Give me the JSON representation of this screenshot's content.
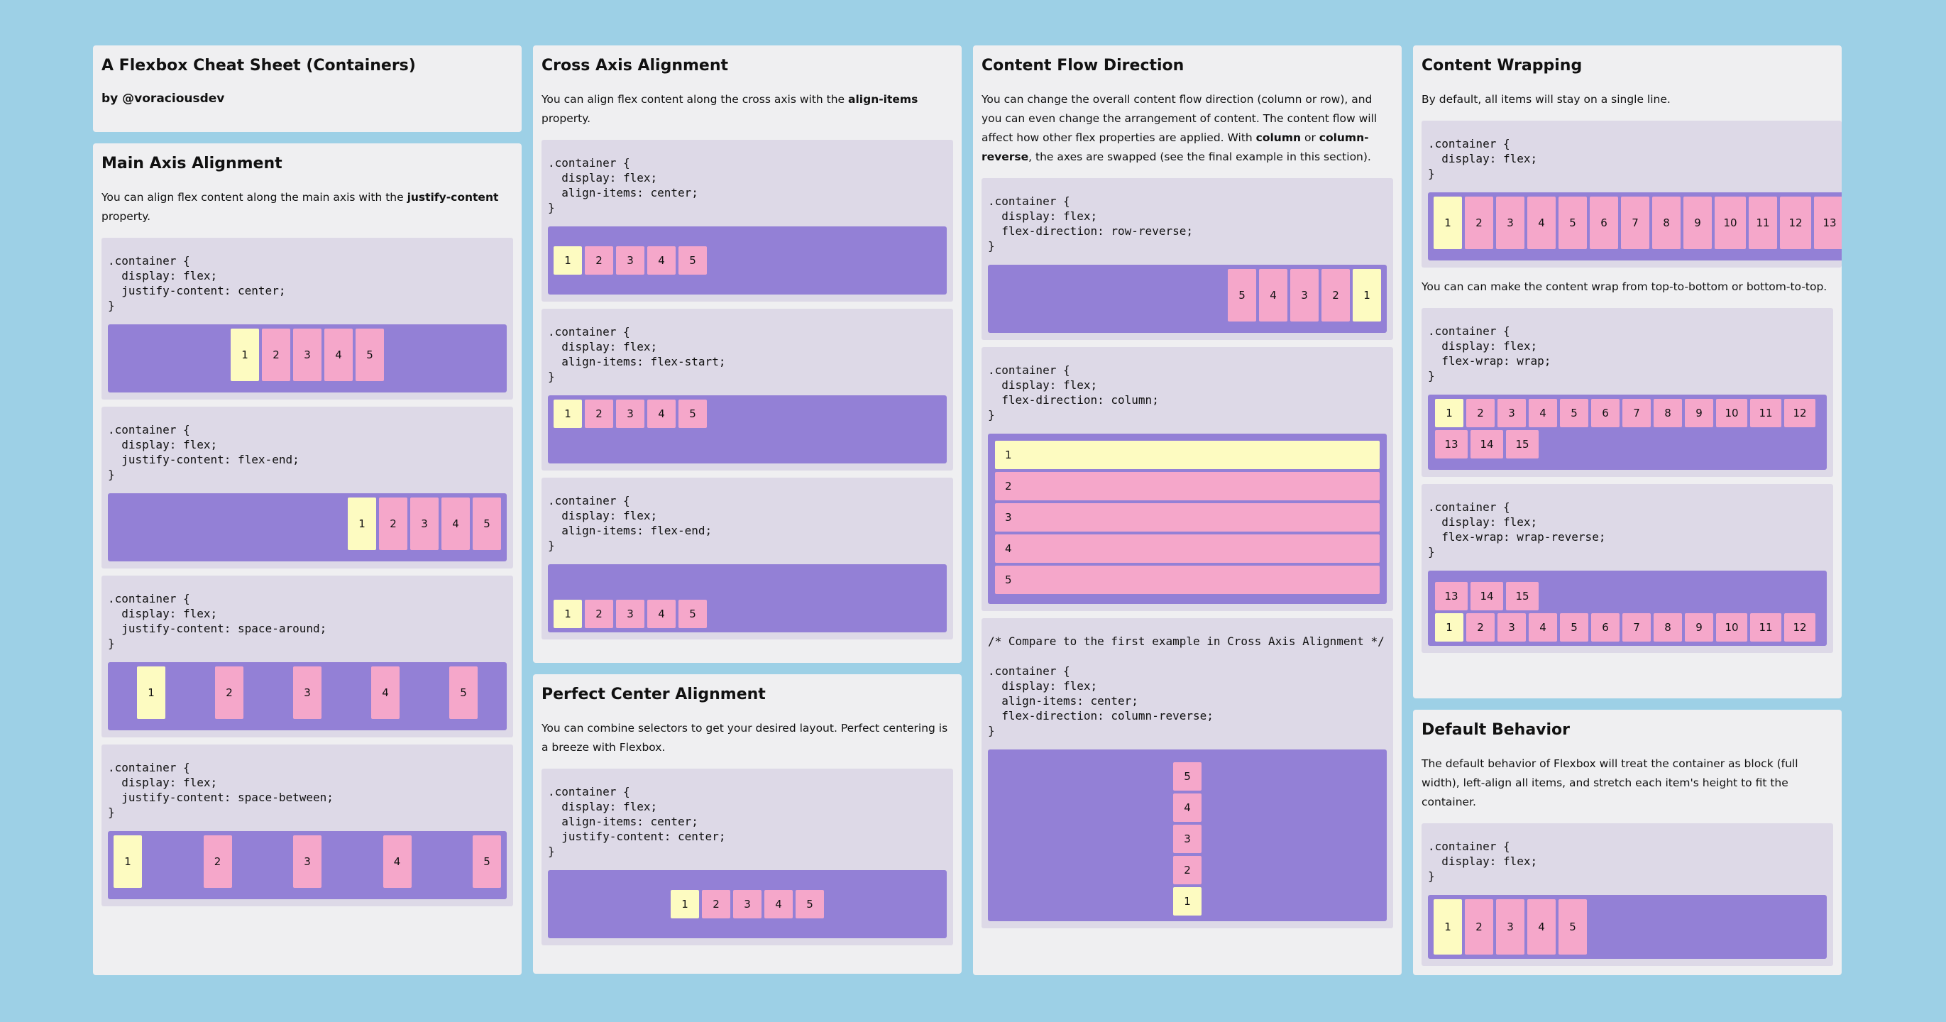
{
  "intro": {
    "title": "A Flexbox Cheat Sheet (Containers)",
    "byline": "by @voraciousdev"
  },
  "main_axis": {
    "title": "Main Axis Alignment",
    "desc_pre": "You can align flex content along the main axis with the ",
    "desc_bold": "justify-content",
    "desc_post": " property.",
    "examples": [
      {
        "code": ".container {\n  display: flex;\n  justify-content: center;\n}"
      },
      {
        "code": ".container {\n  display: flex;\n  justify-content: flex-end;\n}"
      },
      {
        "code": ".container {\n  display: flex;\n  justify-content: space-around;\n}"
      },
      {
        "code": ".container {\n  display: flex;\n  justify-content: space-between;\n}"
      }
    ]
  },
  "cross_axis": {
    "title": "Cross Axis Alignment",
    "desc_pre": "You can align flex content along the cross axis with the ",
    "desc_bold": "align-items",
    "desc_post": " property.",
    "examples": [
      {
        "code": ".container {\n  display: flex;\n  align-items: center;\n}"
      },
      {
        "code": ".container {\n  display: flex;\n  align-items: flex-start;\n}"
      },
      {
        "code": ".container {\n  display: flex;\n  align-items: flex-end;\n}"
      }
    ]
  },
  "perfect_center": {
    "title": "Perfect Center Alignment",
    "desc": "You can combine selectors to get your desired layout. Perfect centering is a breeze with Flexbox.",
    "code": ".container {\n  display: flex;\n  align-items: center;\n  justify-content: center;\n}"
  },
  "flow": {
    "title": "Content Flow Direction",
    "desc_pre": "You can change the overall content flow direction (column or row), and you can even change the arrangement of content. The content flow will affect how other flex properties are applied. With ",
    "desc_bold1": "column",
    "desc_mid": " or ",
    "desc_bold2": "column-reverse",
    "desc_post": ", the axes are swapped (see the final example in this section).",
    "examples": [
      {
        "code": ".container {\n  display: flex;\n  flex-direction: row-reverse;\n}"
      },
      {
        "code": ".container {\n  display: flex;\n  flex-direction: column;\n}"
      },
      {
        "code": "/* Compare to the first example in Cross Axis Alignment */\n\n.container {\n  display: flex;\n  align-items: center;\n  flex-direction: column-reverse;\n}"
      }
    ]
  },
  "wrapping": {
    "title": "Content Wrapping",
    "desc1": "By default, all items will stay on a single line.",
    "code1": ".container {\n  display: flex;\n}",
    "desc2": "You can can make the content wrap from top-to-bottom or bottom-to-top.",
    "code2": ".container {\n  display: flex;\n  flex-wrap: wrap;\n}",
    "code3": ".container {\n  display: flex;\n  flex-wrap: wrap-reverse;\n}"
  },
  "default": {
    "title": "Default Behavior",
    "desc": "The default behavior of Flexbox will treat the container as block (full width), left-align all items, and stretch each item's height to fit the container.",
    "code": ".container {\n  display: flex;\n}"
  },
  "items5": [
    "1",
    "2",
    "3",
    "4",
    "5"
  ],
  "items5rev": [
    "5",
    "4",
    "3",
    "2",
    "1"
  ],
  "items13": [
    "1",
    "2",
    "3",
    "4",
    "5",
    "6",
    "7",
    "8",
    "9",
    "10",
    "11",
    "12",
    "13"
  ],
  "wrap_row1": [
    "1",
    "2",
    "3",
    "4",
    "5",
    "6",
    "7",
    "8",
    "9",
    "10",
    "11",
    "12"
  ],
  "wrap_row2": [
    "13",
    "14",
    "15"
  ],
  "colors": {
    "background": "#9dd0e6",
    "card": "#efeff1",
    "example": "#ddd9e7",
    "container": "#9380d6",
    "item": "#f5a7ca",
    "first_item": "#fdfbc1"
  }
}
